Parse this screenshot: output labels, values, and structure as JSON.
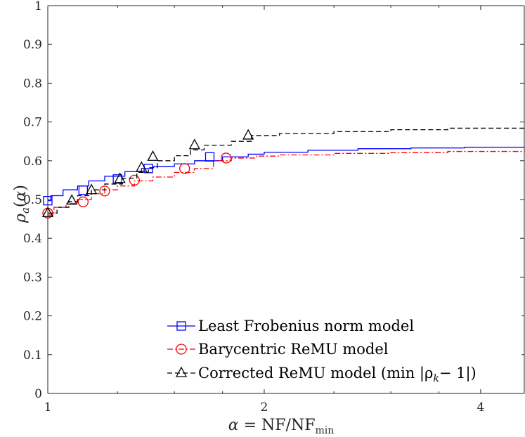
{
  "chart_data": {
    "type": "line",
    "title": "",
    "xlabel": "α = NF/NF_min",
    "ylabel": "ρ_a(α)",
    "xscale": "log2",
    "xlim": [
      1,
      4.6
    ],
    "ylim": [
      0,
      1
    ],
    "xticks": [
      1,
      2,
      4
    ],
    "xtick_labels": [
      "1",
      "2",
      "4"
    ],
    "yticks": [
      0,
      0.1,
      0.2,
      0.3,
      0.4,
      0.5,
      0.6,
      0.7,
      0.8,
      0.9,
      1
    ],
    "ytick_labels": [
      "0",
      "0.1",
      "0.2",
      "0.3",
      "0.4",
      "0.5",
      "0.6",
      "0.7",
      "0.8",
      "0.9",
      "1"
    ],
    "grid": false,
    "legend_location": "bottom-right",
    "series": [
      {
        "name": "Least Frobenius norm model",
        "color": "#0000ff",
        "dash": "solid",
        "marker": "square",
        "x": [
          1,
          1.01,
          1.05,
          1.1,
          1.14,
          1.2,
          1.28,
          1.35,
          1.4,
          1.5,
          1.6,
          1.75,
          1.9,
          2.0,
          2.3,
          2.7,
          3.2,
          3.8,
          4.6
        ],
        "y": [
          0.497,
          0.51,
          0.525,
          0.535,
          0.548,
          0.56,
          0.572,
          0.58,
          0.585,
          0.592,
          0.6,
          0.61,
          0.617,
          0.622,
          0.627,
          0.631,
          0.633,
          0.635,
          0.636
        ],
        "marker_x": [
          1.0,
          1.12,
          1.25,
          1.38,
          1.68
        ],
        "marker_y": [
          0.497,
          0.524,
          0.553,
          0.58,
          0.61
        ]
      },
      {
        "name": "Barycentric ReMU model",
        "color": "#ff0000",
        "dash": "dashdot",
        "marker": "circle",
        "x": [
          1,
          1.02,
          1.06,
          1.1,
          1.15,
          1.2,
          1.25,
          1.32,
          1.4,
          1.5,
          1.6,
          1.7,
          1.8,
          1.95,
          2.1,
          2.5,
          3.0,
          3.6,
          4.6
        ],
        "y": [
          0.46,
          0.48,
          0.49,
          0.5,
          0.515,
          0.525,
          0.535,
          0.548,
          0.558,
          0.57,
          0.58,
          0.6,
          0.607,
          0.612,
          0.615,
          0.619,
          0.621,
          0.624,
          0.626
        ],
        "marker_x": [
          1.0,
          1.12,
          1.2,
          1.32,
          1.55,
          1.77
        ],
        "marker_y": [
          0.465,
          0.494,
          0.522,
          0.55,
          0.58,
          0.607
        ]
      },
      {
        "name": "Corrected ReMU model (min |ρ_k − 1|)",
        "color": "#000000",
        "dash": "dashed",
        "marker": "triangle",
        "x": [
          1,
          1.03,
          1.07,
          1.1,
          1.15,
          1.2,
          1.27,
          1.33,
          1.38,
          1.42,
          1.5,
          1.58,
          1.65,
          1.8,
          1.92,
          2.1,
          2.5,
          3.0,
          3.6,
          4.6
        ],
        "y": [
          0.465,
          0.48,
          0.495,
          0.51,
          0.525,
          0.54,
          0.555,
          0.57,
          0.582,
          0.6,
          0.613,
          0.628,
          0.64,
          0.65,
          0.665,
          0.67,
          0.675,
          0.68,
          0.684,
          0.687
        ],
        "marker_x": [
          1.0,
          1.08,
          1.15,
          1.26,
          1.35,
          1.4,
          1.6,
          1.9
        ],
        "marker_y": [
          0.465,
          0.497,
          0.524,
          0.553,
          0.582,
          0.61,
          0.64,
          0.665
        ]
      }
    ],
    "legend_texts": [
      "Least Frobenius norm model",
      "Barycentric ReMU model",
      "Corrected ReMU model (min |ρ",
      "− 1|)"
    ]
  }
}
